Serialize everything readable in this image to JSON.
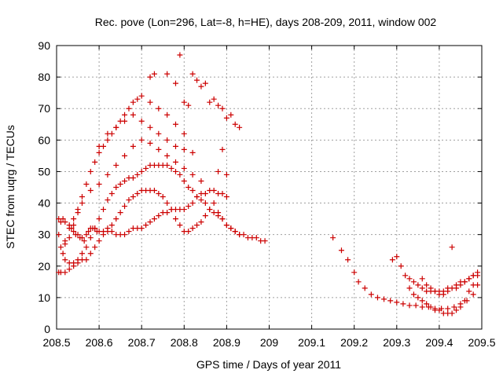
{
  "chart_data": {
    "type": "scatter",
    "title": "Rec. pove (Lon=296, Lat=-8, h=HE), days 208-209, 2011, window 002",
    "xlabel": "GPS time / Days of year 2011",
    "ylabel": "STEC from uqrg / TECUs",
    "xlim": [
      208.5,
      209.5
    ],
    "ylim": [
      0,
      90
    ],
    "xticks": [
      "208.5",
      "208.6",
      "208.7",
      "208.8",
      "208.9",
      "209",
      "209.1",
      "209.2",
      "209.3",
      "209.4",
      "209.5"
    ],
    "yticks": [
      "0",
      "10",
      "20",
      "30",
      "40",
      "50",
      "60",
      "70",
      "80",
      "90"
    ],
    "grid": true,
    "marker": "plus",
    "color": "#cc0000",
    "points": [
      [
        208.505,
        35
      ],
      [
        208.51,
        34
      ],
      [
        208.515,
        35
      ],
      [
        208.52,
        34
      ],
      [
        208.53,
        33
      ],
      [
        208.535,
        32
      ],
      [
        208.54,
        31
      ],
      [
        208.545,
        30
      ],
      [
        208.55,
        30
      ],
      [
        208.555,
        29
      ],
      [
        208.56,
        29
      ],
      [
        208.565,
        28
      ],
      [
        208.57,
        30
      ],
      [
        208.575,
        31
      ],
      [
        208.58,
        32
      ],
      [
        208.585,
        32
      ],
      [
        208.59,
        32
      ],
      [
        208.595,
        31
      ],
      [
        208.6,
        31
      ],
      [
        208.61,
        31
      ],
      [
        208.62,
        31
      ],
      [
        208.63,
        31
      ],
      [
        208.64,
        30
      ],
      [
        208.65,
        30
      ],
      [
        208.66,
        30
      ],
      [
        208.67,
        31
      ],
      [
        208.68,
        32
      ],
      [
        208.69,
        32
      ],
      [
        208.7,
        32
      ],
      [
        208.71,
        33
      ],
      [
        208.72,
        34
      ],
      [
        208.73,
        35
      ],
      [
        208.74,
        36
      ],
      [
        208.75,
        37
      ],
      [
        208.76,
        37
      ],
      [
        208.77,
        38
      ],
      [
        208.78,
        38
      ],
      [
        208.79,
        38
      ],
      [
        208.8,
        38
      ],
      [
        208.81,
        39
      ],
      [
        208.82,
        40
      ],
      [
        208.83,
        42
      ],
      [
        208.84,
        43
      ],
      [
        208.85,
        43
      ],
      [
        208.86,
        44
      ],
      [
        208.87,
        44
      ],
      [
        208.88,
        43
      ],
      [
        208.89,
        43
      ],
      [
        208.9,
        42
      ],
      [
        208.505,
        30
      ],
      [
        208.51,
        26
      ],
      [
        208.515,
        24
      ],
      [
        208.52,
        22
      ],
      [
        208.53,
        21
      ],
      [
        208.54,
        21
      ],
      [
        208.55,
        21
      ],
      [
        208.56,
        22
      ],
      [
        208.57,
        22
      ],
      [
        208.58,
        24
      ],
      [
        208.59,
        26
      ],
      [
        208.6,
        28
      ],
      [
        208.61,
        30
      ],
      [
        208.62,
        32
      ],
      [
        208.63,
        33
      ],
      [
        208.64,
        35
      ],
      [
        208.65,
        37
      ],
      [
        208.66,
        39
      ],
      [
        208.67,
        41
      ],
      [
        208.68,
        42
      ],
      [
        208.69,
        43
      ],
      [
        208.7,
        44
      ],
      [
        208.71,
        44
      ],
      [
        208.72,
        44
      ],
      [
        208.73,
        44
      ],
      [
        208.74,
        43
      ],
      [
        208.75,
        42
      ],
      [
        208.76,
        40
      ],
      [
        208.77,
        38
      ],
      [
        208.78,
        35
      ],
      [
        208.79,
        33
      ],
      [
        208.8,
        31
      ],
      [
        208.81,
        31
      ],
      [
        208.82,
        32
      ],
      [
        208.83,
        33
      ],
      [
        208.84,
        34
      ],
      [
        208.85,
        36
      ],
      [
        208.86,
        38
      ],
      [
        208.87,
        40
      ],
      [
        208.88,
        37
      ],
      [
        208.89,
        35
      ],
      [
        208.9,
        33
      ],
      [
        208.91,
        32
      ],
      [
        208.92,
        31
      ],
      [
        208.93,
        30
      ],
      [
        208.94,
        30
      ],
      [
        208.95,
        29
      ],
      [
        208.96,
        29
      ],
      [
        208.97,
        29
      ],
      [
        208.98,
        28
      ],
      [
        208.99,
        28
      ],
      [
        208.505,
        18
      ],
      [
        208.51,
        18
      ],
      [
        208.52,
        18
      ],
      [
        208.53,
        19
      ],
      [
        208.54,
        20
      ],
      [
        208.55,
        22
      ],
      [
        208.56,
        24
      ],
      [
        208.57,
        26
      ],
      [
        208.58,
        29
      ],
      [
        208.59,
        32
      ],
      [
        208.6,
        35
      ],
      [
        208.61,
        38
      ],
      [
        208.62,
        41
      ],
      [
        208.63,
        43
      ],
      [
        208.64,
        45
      ],
      [
        208.65,
        46
      ],
      [
        208.66,
        47
      ],
      [
        208.67,
        48
      ],
      [
        208.68,
        48
      ],
      [
        208.69,
        49
      ],
      [
        208.7,
        50
      ],
      [
        208.71,
        51
      ],
      [
        208.72,
        52
      ],
      [
        208.73,
        52
      ],
      [
        208.74,
        52
      ],
      [
        208.75,
        52
      ],
      [
        208.76,
        52
      ],
      [
        208.77,
        51
      ],
      [
        208.78,
        50
      ],
      [
        208.79,
        49
      ],
      [
        208.8,
        47
      ],
      [
        208.81,
        45
      ],
      [
        208.82,
        44
      ],
      [
        208.83,
        42
      ],
      [
        208.84,
        41
      ],
      [
        208.85,
        40
      ],
      [
        208.86,
        38
      ],
      [
        208.87,
        37
      ],
      [
        208.88,
        36
      ],
      [
        208.89,
        35
      ],
      [
        208.9,
        33
      ],
      [
        208.91,
        32
      ],
      [
        208.92,
        31
      ],
      [
        208.93,
        30
      ],
      [
        208.52,
        27
      ],
      [
        208.53,
        29
      ],
      [
        208.54,
        33
      ],
      [
        208.55,
        37
      ],
      [
        208.56,
        42
      ],
      [
        208.57,
        46
      ],
      [
        208.58,
        50
      ],
      [
        208.59,
        53
      ],
      [
        208.6,
        56
      ],
      [
        208.61,
        58
      ],
      [
        208.62,
        60
      ],
      [
        208.63,
        62
      ],
      [
        208.64,
        64
      ],
      [
        208.65,
        66
      ],
      [
        208.66,
        68
      ],
      [
        208.67,
        70
      ],
      [
        208.68,
        72
      ],
      [
        208.69,
        73
      ],
      [
        208.7,
        74
      ],
      [
        208.72,
        72
      ],
      [
        208.74,
        70
      ],
      [
        208.76,
        68
      ],
      [
        208.78,
        65
      ],
      [
        208.8,
        62
      ],
      [
        208.52,
        28
      ],
      [
        208.53,
        32
      ],
      [
        208.54,
        35
      ],
      [
        208.55,
        38
      ],
      [
        208.56,
        40
      ],
      [
        208.58,
        44
      ],
      [
        208.6,
        46
      ],
      [
        208.62,
        49
      ],
      [
        208.64,
        52
      ],
      [
        208.66,
        55
      ],
      [
        208.68,
        58
      ],
      [
        208.7,
        60
      ],
      [
        208.72,
        59
      ],
      [
        208.74,
        57
      ],
      [
        208.76,
        55
      ],
      [
        208.78,
        53
      ],
      [
        208.8,
        51
      ],
      [
        208.82,
        49
      ],
      [
        208.84,
        47
      ],
      [
        208.72,
        80
      ],
      [
        208.73,
        81
      ],
      [
        208.76,
        81
      ],
      [
        208.78,
        78
      ],
      [
        208.79,
        87
      ],
      [
        208.8,
        72
      ],
      [
        208.81,
        71
      ],
      [
        208.82,
        81
      ],
      [
        208.83,
        79
      ],
      [
        208.84,
        77
      ],
      [
        208.85,
        78
      ],
      [
        208.86,
        72
      ],
      [
        208.87,
        73
      ],
      [
        208.88,
        71
      ],
      [
        208.89,
        70
      ],
      [
        208.9,
        67
      ],
      [
        208.91,
        68
      ],
      [
        208.92,
        65
      ],
      [
        208.93,
        64
      ],
      [
        208.89,
        57
      ],
      [
        208.88,
        50
      ],
      [
        208.9,
        49
      ],
      [
        208.6,
        58
      ],
      [
        208.62,
        62
      ],
      [
        208.64,
        64
      ],
      [
        208.66,
        66
      ],
      [
        208.68,
        68
      ],
      [
        208.7,
        66
      ],
      [
        208.72,
        64
      ],
      [
        208.74,
        62
      ],
      [
        208.76,
        60
      ],
      [
        208.78,
        58
      ],
      [
        208.8,
        57
      ],
      [
        208.82,
        56
      ],
      [
        209.15,
        29
      ],
      [
        209.17,
        25
      ],
      [
        209.185,
        22
      ],
      [
        209.2,
        18
      ],
      [
        209.21,
        15
      ],
      [
        209.225,
        13
      ],
      [
        209.24,
        11
      ],
      [
        209.255,
        10
      ],
      [
        209.27,
        9.5
      ],
      [
        209.285,
        9
      ],
      [
        209.3,
        8.5
      ],
      [
        209.315,
        8
      ],
      [
        209.33,
        7.5
      ],
      [
        209.345,
        7.5
      ],
      [
        209.36,
        7
      ],
      [
        209.375,
        7
      ],
      [
        209.39,
        6.5
      ],
      [
        209.405,
        6.5
      ],
      [
        209.42,
        6.5
      ],
      [
        209.435,
        7
      ],
      [
        209.45,
        8
      ],
      [
        209.465,
        9
      ],
      [
        209.48,
        11
      ],
      [
        209.49,
        14
      ],
      [
        209.29,
        22
      ],
      [
        209.3,
        23
      ],
      [
        209.31,
        20
      ],
      [
        209.32,
        17
      ],
      [
        209.33,
        16
      ],
      [
        209.34,
        15
      ],
      [
        209.35,
        14
      ],
      [
        209.36,
        13
      ],
      [
        209.37,
        12
      ],
      [
        209.38,
        12
      ],
      [
        209.39,
        12
      ],
      [
        209.4,
        12
      ],
      [
        209.41,
        12
      ],
      [
        209.42,
        13
      ],
      [
        209.43,
        13
      ],
      [
        209.44,
        14
      ],
      [
        209.45,
        15
      ],
      [
        209.46,
        15
      ],
      [
        209.47,
        16
      ],
      [
        209.48,
        17
      ],
      [
        209.49,
        18
      ],
      [
        209.33,
        13
      ],
      [
        209.34,
        11
      ],
      [
        209.35,
        10
      ],
      [
        209.36,
        9
      ],
      [
        209.37,
        8
      ],
      [
        209.38,
        7
      ],
      [
        209.39,
        6
      ],
      [
        209.4,
        6
      ],
      [
        209.41,
        5
      ],
      [
        209.42,
        5
      ],
      [
        209.43,
        5
      ],
      [
        209.44,
        6
      ],
      [
        209.45,
        7
      ],
      [
        209.46,
        9
      ],
      [
        209.47,
        12
      ],
      [
        209.48,
        14
      ],
      [
        209.36,
        16
      ],
      [
        209.37,
        14
      ],
      [
        209.38,
        13
      ],
      [
        209.39,
        12
      ],
      [
        209.4,
        11
      ],
      [
        209.41,
        11
      ],
      [
        209.42,
        12
      ],
      [
        209.43,
        26
      ],
      [
        209.44,
        13
      ],
      [
        209.45,
        14
      ],
      [
        209.46,
        15
      ],
      [
        209.47,
        16
      ],
      [
        209.48,
        17
      ],
      [
        209.49,
        17
      ]
    ]
  }
}
